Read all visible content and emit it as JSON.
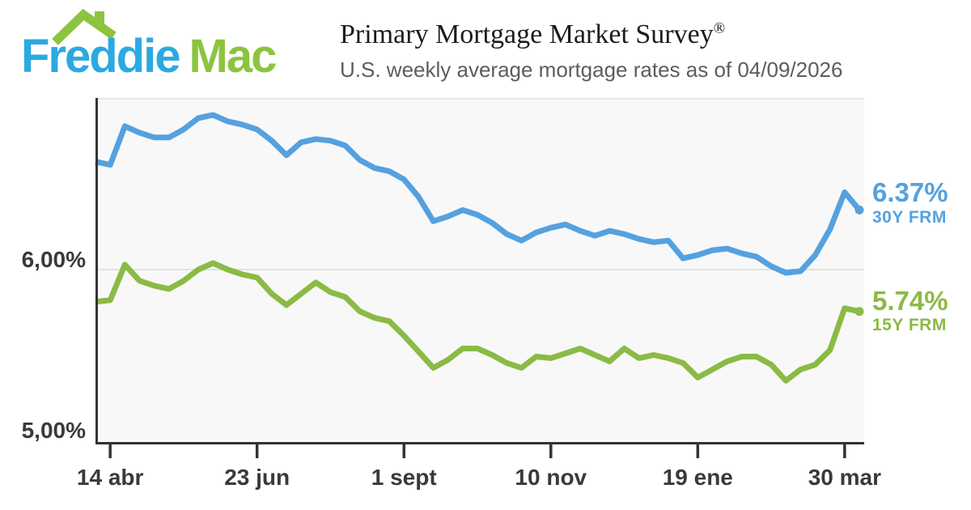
{
  "logo": {
    "word1": "Freddie",
    "word2": "Mac",
    "word1_color": "#2BA9E0",
    "word2_color": "#8CC43F",
    "roof_color": "#8CC43F"
  },
  "header": {
    "title": "Primary Mortgage Market Survey",
    "registered_mark": "®",
    "subtitle": "U.S. weekly average mortgage rates as of 04/09/2026"
  },
  "chart_data": {
    "type": "line",
    "title": "Primary Mortgage Market Survey",
    "subtitle": "U.S. weekly average mortgage rates as of 04/09/2026",
    "x_axis": {
      "tick_labels": [
        "14 abr",
        "23 jun",
        "1 sept",
        "10 nov",
        "19 ene",
        "30 mar"
      ],
      "tick_indices": [
        1,
        11,
        21,
        31,
        41,
        51
      ]
    },
    "y_axis": {
      "tick_labels": [
        "6,00%",
        "5,00%"
      ],
      "tick_values": [
        6.0,
        5.0
      ],
      "ylim": [
        4.93,
        7.07
      ],
      "gridline_values": [
        6.0
      ]
    },
    "legend_position": "right",
    "series": [
      {
        "name": "30Y FRM",
        "final_label": "6.37%",
        "final_value": 6.37,
        "color": "#55A1DF",
        "values": [
          6.67,
          6.65,
          6.89,
          6.85,
          6.82,
          6.82,
          6.87,
          6.94,
          6.96,
          6.92,
          6.9,
          6.87,
          6.8,
          6.71,
          6.79,
          6.81,
          6.8,
          6.77,
          6.68,
          6.63,
          6.61,
          6.56,
          6.45,
          6.3,
          6.33,
          6.37,
          6.34,
          6.29,
          6.22,
          6.18,
          6.23,
          6.26,
          6.28,
          6.24,
          6.21,
          6.24,
          6.22,
          6.19,
          6.17,
          6.18,
          6.07,
          6.09,
          6.12,
          6.13,
          6.1,
          6.08,
          6.02,
          5.98,
          5.99,
          6.09,
          6.25,
          6.48,
          6.37
        ]
      },
      {
        "name": "15Y FRM",
        "final_label": "5.74%",
        "final_value": 5.74,
        "color": "#8BBA45",
        "values": [
          5.8,
          5.81,
          6.03,
          5.93,
          5.9,
          5.88,
          5.93,
          6.0,
          6.04,
          6.0,
          5.97,
          5.95,
          5.85,
          5.78,
          5.85,
          5.92,
          5.86,
          5.83,
          5.74,
          5.7,
          5.68,
          5.59,
          5.49,
          5.39,
          5.44,
          5.51,
          5.51,
          5.47,
          5.42,
          5.39,
          5.46,
          5.45,
          5.48,
          5.51,
          5.47,
          5.43,
          5.51,
          5.45,
          5.47,
          5.45,
          5.42,
          5.33,
          5.38,
          5.43,
          5.46,
          5.46,
          5.41,
          5.31,
          5.38,
          5.41,
          5.5,
          5.76,
          5.74
        ]
      }
    ]
  }
}
